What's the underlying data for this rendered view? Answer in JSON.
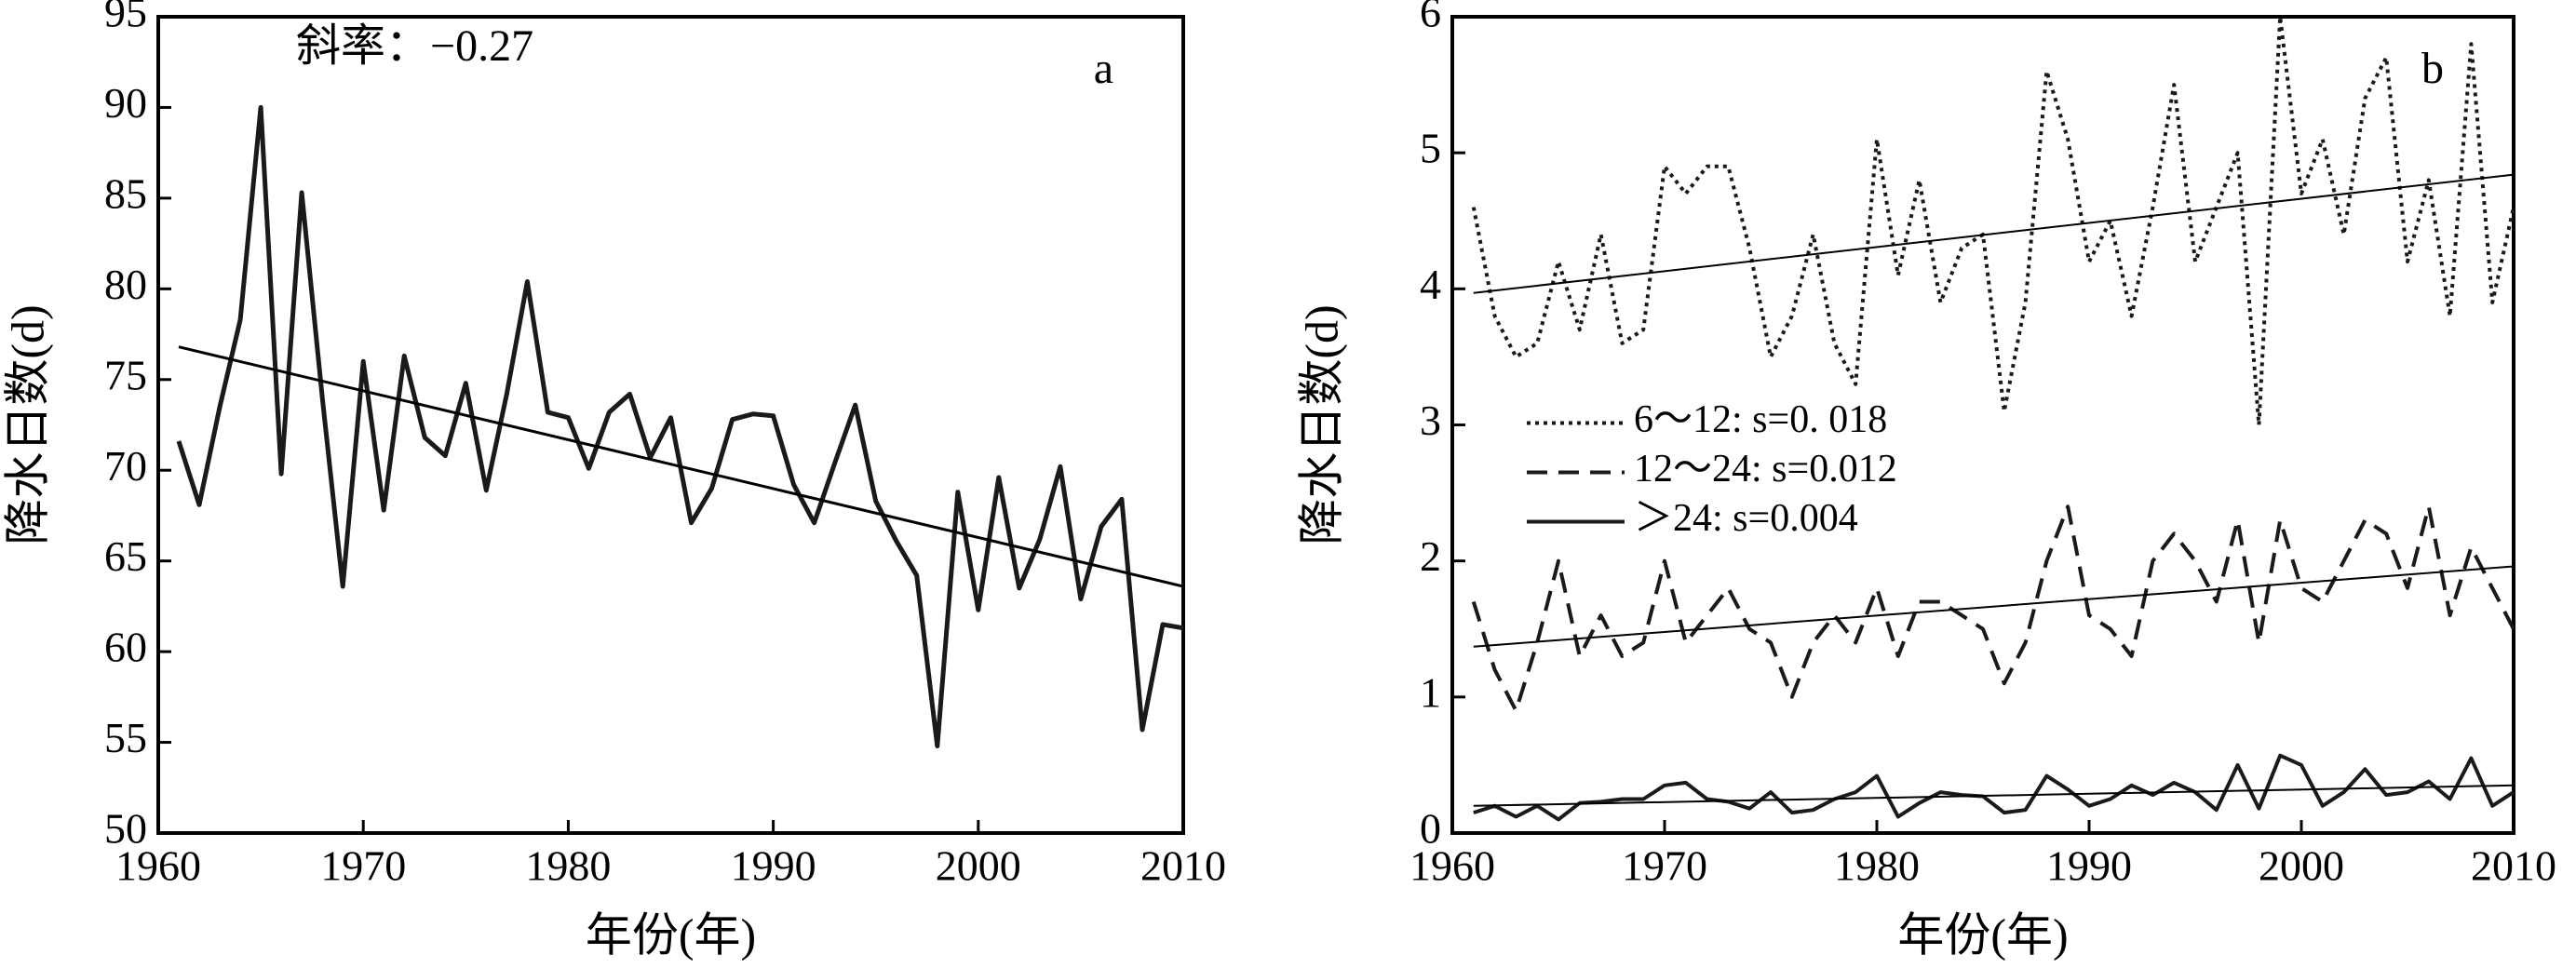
{
  "chart_data": [
    {
      "type": "line",
      "ylabel": "降水日数(d)",
      "xlabel": "年份(年)",
      "annotation": "斜率：−0.27",
      "panel_label": "a",
      "xlim": [
        1960,
        2010
      ],
      "xticks": [
        1960,
        1970,
        1980,
        1990,
        2000,
        2010
      ],
      "ylim": [
        50,
        95
      ],
      "yticks": [
        50,
        55,
        60,
        65,
        70,
        75,
        80,
        85,
        90,
        95
      ],
      "x": [
        1961,
        1962,
        1963,
        1964,
        1965,
        1966,
        1967,
        1968,
        1969,
        1970,
        1971,
        1972,
        1973,
        1974,
        1975,
        1976,
        1977,
        1978,
        1979,
        1980,
        1981,
        1982,
        1983,
        1984,
        1985,
        1986,
        1987,
        1988,
        1989,
        1990,
        1991,
        1992,
        1993,
        1994,
        1995,
        1996,
        1997,
        1998,
        1999,
        2000,
        2001,
        2002,
        2003,
        2004,
        2005,
        2006,
        2007,
        2008,
        2009,
        2010
      ],
      "series": [
        {
          "color": "#1a1a1a",
          "style": "solid",
          "line_width": 5,
          "values": [
            71.6,
            68.1,
            73.5,
            78.3,
            90.0,
            69.8,
            85.3,
            74.0,
            63.6,
            76.0,
            67.8,
            76.3,
            71.8,
            70.8,
            74.8,
            68.9,
            74.2,
            80.4,
            73.2,
            72.9,
            70.1,
            73.2,
            74.2,
            70.7,
            72.9,
            67.1,
            69.0,
            72.8,
            73.1,
            73.0,
            69.2,
            67.1,
            70.4,
            73.6,
            68.3,
            66.1,
            64.2,
            54.8,
            68.8,
            62.3,
            69.6,
            63.5,
            66.2,
            70.2,
            62.9,
            66.9,
            68.4,
            55.7,
            61.5,
            61.3
          ]
        },
        {
          "color": "#000000",
          "style": "solid",
          "line_width": 3,
          "x": [
            1961,
            2010
          ],
          "values": [
            76.8,
            63.6
          ]
        }
      ]
    },
    {
      "type": "line",
      "ylabel": "降水日数(d)",
      "xlabel": "年份(年)",
      "panel_label": "b",
      "legend": "center-left",
      "xlim": [
        1960,
        2010
      ],
      "xticks": [
        1960,
        1970,
        1980,
        1990,
        2000,
        2010
      ],
      "ylim": [
        0,
        6
      ],
      "yticks": [
        0,
        1,
        2,
        3,
        4,
        5,
        6
      ],
      "x": [
        1961,
        1962,
        1963,
        1964,
        1965,
        1966,
        1967,
        1968,
        1969,
        1970,
        1971,
        1972,
        1973,
        1974,
        1975,
        1976,
        1977,
        1978,
        1979,
        1980,
        1981,
        1982,
        1983,
        1984,
        1985,
        1986,
        1987,
        1988,
        1989,
        1990,
        1991,
        1992,
        1993,
        1994,
        1995,
        1996,
        1997,
        1998,
        1999,
        2000,
        2001,
        2002,
        2003,
        2004,
        2005,
        2006,
        2007,
        2008,
        2009,
        2010
      ],
      "series": [
        {
          "name": "6～12: s=0. 018",
          "color": "#1a1a1a",
          "style": "dotted",
          "line_width": 4,
          "values": [
            4.6,
            3.8,
            3.5,
            3.6,
            4.2,
            3.7,
            4.4,
            3.6,
            3.7,
            4.9,
            4.7,
            4.9,
            4.9,
            4.3,
            3.5,
            3.8,
            4.4,
            3.6,
            3.3,
            5.1,
            4.1,
            4.8,
            3.9,
            4.3,
            4.4,
            3.1,
            3.9,
            5.6,
            5.1,
            4.2,
            4.5,
            3.8,
            4.6,
            5.5,
            4.2,
            4.6,
            5.0,
            3.0,
            6.0,
            4.7,
            5.1,
            4.4,
            5.4,
            5.7,
            4.2,
            4.8,
            3.8,
            5.8,
            3.9,
            4.6
          ]
        },
        {
          "name": "12～24: s=0.012",
          "color": "#1a1a1a",
          "style": "dashed",
          "line_width": 4,
          "values": [
            1.7,
            1.2,
            0.9,
            1.4,
            2.0,
            1.3,
            1.6,
            1.3,
            1.4,
            2.0,
            1.4,
            1.6,
            1.8,
            1.5,
            1.4,
            1.0,
            1.4,
            1.6,
            1.4,
            1.8,
            1.3,
            1.7,
            1.7,
            1.6,
            1.5,
            1.1,
            1.4,
            2.0,
            2.4,
            1.6,
            1.5,
            1.3,
            2.0,
            2.2,
            2.0,
            1.7,
            2.3,
            1.4,
            2.3,
            1.8,
            1.7,
            2.0,
            2.3,
            2.2,
            1.8,
            2.4,
            1.6,
            2.1,
            1.8,
            1.5
          ]
        },
        {
          "name": "＞24: s=0.004",
          "color": "#1a1a1a",
          "style": "solid",
          "line_width": 4,
          "values": [
            0.15,
            0.2,
            0.12,
            0.2,
            0.1,
            0.22,
            0.23,
            0.25,
            0.25,
            0.35,
            0.37,
            0.25,
            0.23,
            0.18,
            0.3,
            0.15,
            0.17,
            0.25,
            0.3,
            0.42,
            0.12,
            0.22,
            0.3,
            0.28,
            0.27,
            0.15,
            0.17,
            0.42,
            0.32,
            0.2,
            0.25,
            0.35,
            0.28,
            0.37,
            0.3,
            0.17,
            0.5,
            0.18,
            0.57,
            0.5,
            0.2,
            0.3,
            0.47,
            0.28,
            0.3,
            0.38,
            0.25,
            0.55,
            0.2,
            0.3
          ]
        },
        {
          "color": "#000000",
          "style": "solid",
          "line_width": 2,
          "x": [
            1961,
            2010
          ],
          "values": [
            3.97,
            4.84
          ]
        },
        {
          "color": "#000000",
          "style": "solid",
          "line_width": 2,
          "x": [
            1961,
            2010
          ],
          "values": [
            1.37,
            1.96
          ]
        },
        {
          "color": "#000000",
          "style": "solid",
          "line_width": 2,
          "x": [
            1961,
            2010
          ],
          "values": [
            0.2,
            0.35
          ]
        }
      ]
    }
  ]
}
